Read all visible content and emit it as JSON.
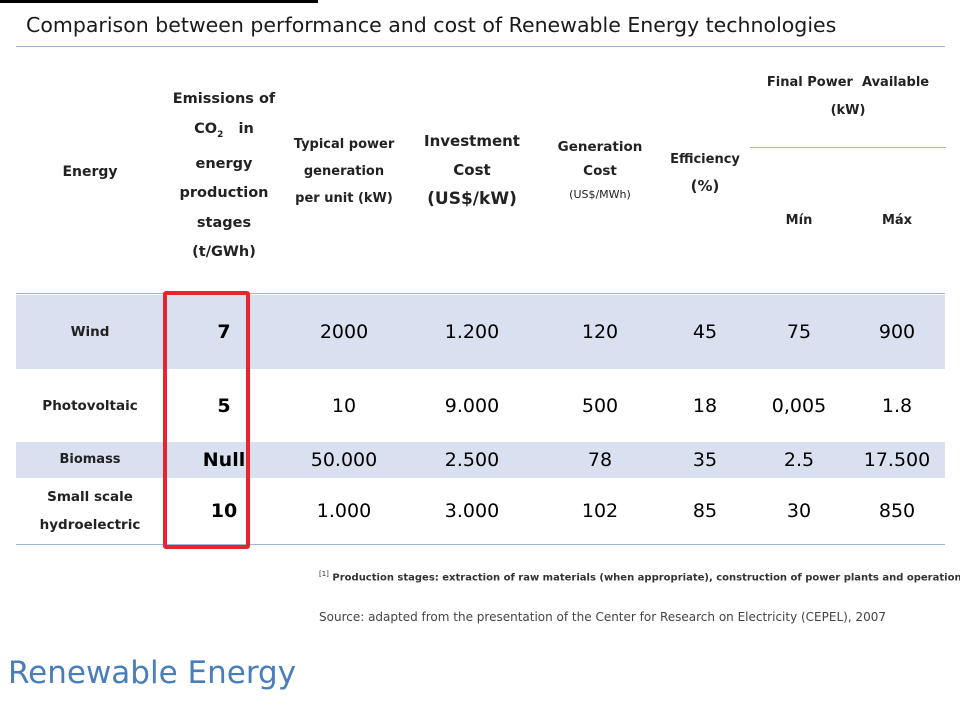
{
  "title": "Comparison between performance and cost of Renewable Energy technologies",
  "header": {
    "energy": "Energy",
    "emissions_lines": [
      "Emissions of",
      "CO",
      "in",
      "energy",
      "production",
      "stages",
      "(t/GWh)"
    ],
    "emissions_sub": "2",
    "typical_lines": [
      "Typical power",
      "generation",
      "per unit (kW)"
    ],
    "investment_lines": [
      "Investment",
      "Cost",
      "(US$/kW)"
    ],
    "generation_lines": [
      "Generation",
      "Cost",
      "(US$/MWh)"
    ],
    "efficiency_lines": [
      "Efficiency",
      "(%)"
    ],
    "final_power_lines": [
      "Final Power  Available",
      "(kW)"
    ],
    "min": "Mín",
    "max": "Máx"
  },
  "rows": [
    {
      "energy": "Wind",
      "emissions": "7",
      "typical": "2000",
      "investment": "1.200",
      "generation": "120",
      "efficiency": "45",
      "min": "75",
      "max": "900"
    },
    {
      "energy": "Photovoltaic",
      "emissions": "5",
      "typical": "10",
      "investment": "9.000",
      "generation": "500",
      "efficiency": "18",
      "min": "0,005",
      "max": "1.8"
    },
    {
      "energy": "Biomass",
      "emissions": "Null",
      "typical": "50.000",
      "investment": "2.500",
      "generation": "78",
      "efficiency": "35",
      "min": "2.5",
      "max": "17.500"
    },
    {
      "energy": "Small scale hydroelectric",
      "emissions": "10",
      "typical": "1.000",
      "investment": "3.000",
      "generation": "102",
      "efficiency": "85",
      "min": "30",
      "max": "850"
    }
  ],
  "footnote": {
    "marker": "[1]",
    "text": " Production stages: extraction of raw materials (when appropriate), construction of power plants and operation. ."
  },
  "source": "Source: adapted from the presentation of the Center for Research on Electricity (CEPEL), 2007",
  "brand": "Renewable Energy",
  "colors": {
    "highlight_box": "#e8252e",
    "row_shade": "#d9e1f1",
    "rule": "#9fb7d3",
    "brand_text": "#4a7ebb"
  }
}
